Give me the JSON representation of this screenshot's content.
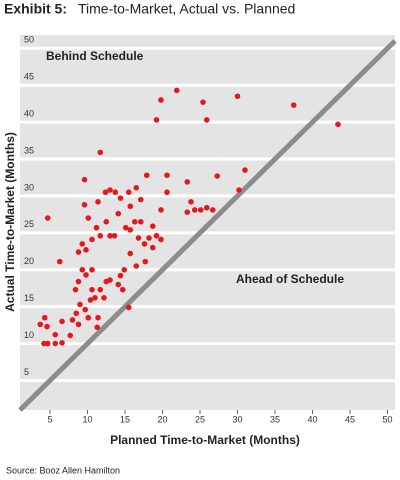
{
  "chart_data": {
    "type": "scatter",
    "exhibit": "Exhibit 5:",
    "title": "Time-to-Market, Actual vs. Planned",
    "x_label": "Planned Time-to-Market (Months)",
    "y_label": "Actual Time-to-Market (Months)",
    "annotations": [
      "Behind Schedule",
      "Ahead of Schedule"
    ],
    "source": "Source: Booz Allen Hamilton",
    "color": "#e3191c",
    "grid": true,
    "diagonal": true,
    "xlim": [
      1,
      51
    ],
    "ylim": [
      1,
      51.8
    ],
    "xticks": [
      5,
      10,
      15,
      20,
      25,
      30,
      35,
      40,
      45,
      50
    ],
    "yticks": [
      5,
      10,
      15,
      20,
      25,
      30,
      35,
      40,
      45,
      50
    ],
    "x": [
      4.2,
      4.7,
      5.7,
      6.6,
      3.7,
      4.3,
      4.6,
      5.7,
      6.6,
      7.7,
      8,
      8.5,
      8.8,
      9,
      9.7,
      10.1,
      11.3,
      11.4,
      10.4,
      10.6,
      11,
      11.7,
      12.2,
      12.5,
      13,
      14.1,
      14.4,
      14.9,
      15.5,
      14.7,
      9.8,
      10.6,
      8.8,
      9.3,
      8.4,
      6.3,
      8.8,
      9.3,
      9.8,
      10.6,
      11.2,
      11.7,
      12.5,
      13,
      13.6,
      14.1,
      15.1,
      15.7,
      16.3,
      17.1,
      16.8,
      17.6,
      18.2,
      18.7,
      19.2,
      19.8,
      18.7,
      15.7,
      16.5,
      17.7,
      9.6,
      10.1,
      11.4,
      12.4,
      13,
      13.7,
      14.4,
      15.5,
      15.7,
      16.5,
      17.1,
      17.9,
      19.8,
      20.6,
      20.6,
      4.7,
      9.6,
      11.7,
      23.3,
      23.8,
      23.3,
      24.3,
      25.1,
      25.9,
      26.7,
      27.3,
      30.2,
      31,
      19.8,
      19.2,
      21.9,
      25.4,
      25.9,
      30,
      37.5,
      43.4
    ],
    "y": [
      10,
      10,
      10,
      10.1,
      12.6,
      13.5,
      12.3,
      11.2,
      13,
      11.1,
      13.2,
      14.1,
      12.6,
      15.3,
      14.6,
      13.5,
      12.2,
      13.5,
      15.9,
      17.3,
      16.2,
      17.3,
      16.2,
      18.4,
      18.6,
      18,
      19.2,
      20,
      14.9,
      17.3,
      19.3,
      20,
      18.4,
      20,
      17.3,
      21.1,
      22.4,
      23.5,
      22.7,
      24.1,
      25.7,
      24.6,
      26.5,
      24.6,
      24.6,
      27.6,
      25.7,
      25.4,
      26.5,
      26.5,
      24.3,
      23.5,
      24.3,
      25.9,
      24.6,
      24.1,
      23,
      22.2,
      20.5,
      21.1,
      28.8,
      27,
      29.2,
      30.5,
      30.8,
      30.5,
      29.7,
      30.5,
      28.6,
      31.1,
      29.5,
      32.8,
      28.1,
      32.8,
      30.5,
      27,
      32.2,
      35.9,
      31.9,
      29.2,
      27.8,
      28.1,
      28.1,
      28.4,
      28.1,
      32.7,
      30.8,
      33.5,
      43,
      40.3,
      44.3,
      42.7,
      40.3,
      43.5,
      42.3,
      39.7
    ]
  }
}
